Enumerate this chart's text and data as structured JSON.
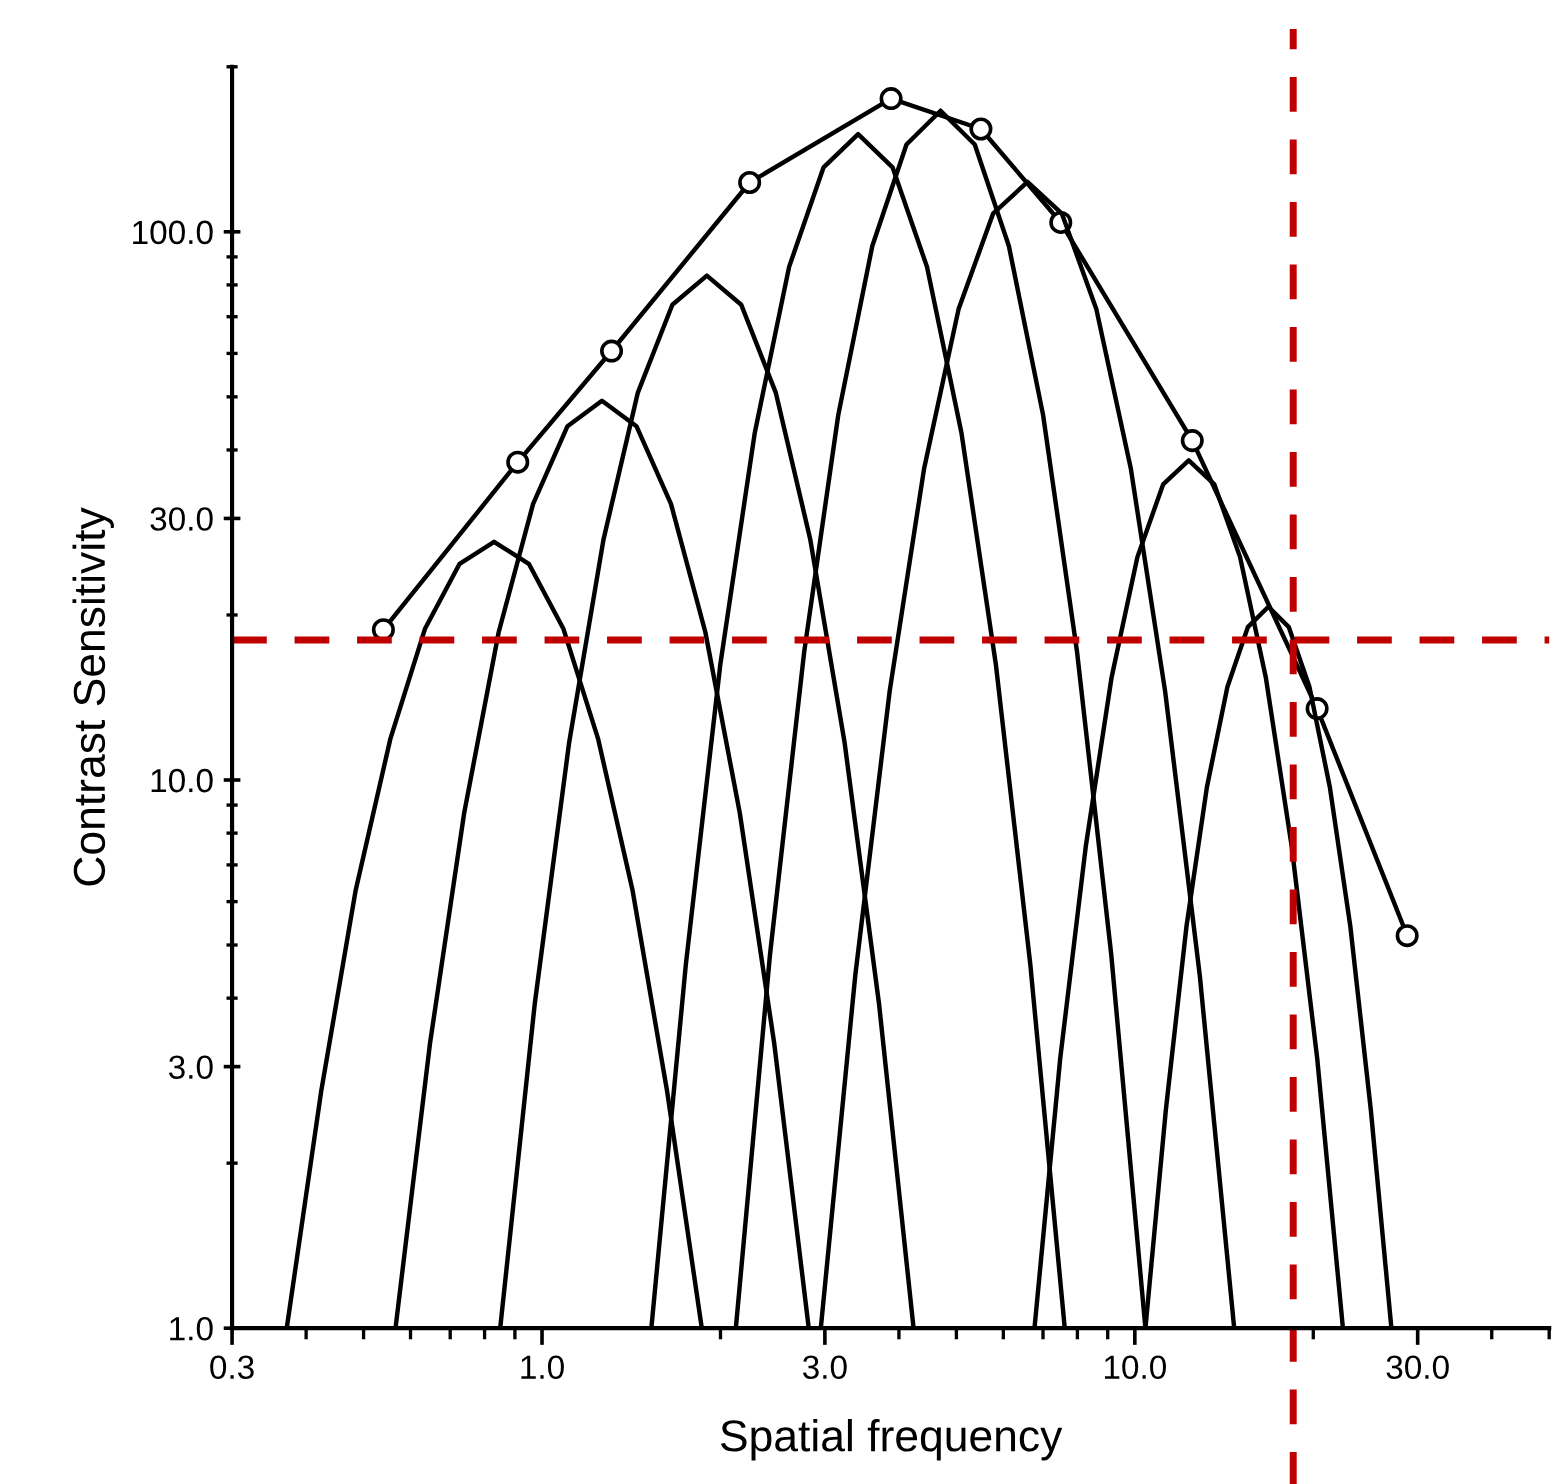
{
  "chart_data": {
    "type": "line",
    "xlabel": "Spatial frequency",
    "ylabel": "Contrast Sensitivity",
    "log": "xy",
    "grid": false,
    "legend": false,
    "line_style": "solid",
    "xlim": [
      0.3,
      50
    ],
    "ylim": [
      1,
      200
    ],
    "xticks": [
      0.3,
      {
        "value": 1,
        "label": "1.0"
      },
      {
        "value": 3,
        "label": "3.0"
      },
      {
        "value": 10,
        "label": "10.0"
      },
      {
        "value": 30,
        "label": "30.0"
      }
    ],
    "yticks": [
      {
        "value": 1,
        "label": "1.0"
      },
      {
        "value": 3,
        "label": "3.0"
      },
      {
        "value": 10,
        "label": "10.0"
      },
      {
        "value": 30,
        "label": "30.0"
      },
      {
        "value": 100,
        "label": "100.0"
      }
    ],
    "series": [
      {
        "color": "#000000",
        "marker": "circle",
        "x": [
          0.54,
          0.91,
          1.31,
          2.24,
          3.88,
          5.5,
          7.5,
          12.5,
          20.3,
          28.8
        ],
        "values": [
          18.8,
          38,
          60.6,
          123,
          175,
          154,
          104,
          41.6,
          13.5,
          5.2
        ]
      },
      {
        "color": "#000000",
        "marker": "none",
        "x": [
          0.371,
          0.424,
          0.485,
          0.555,
          0.635,
          0.726,
          0.83,
          0.95,
          1.086,
          1.243,
          1.421,
          1.626,
          1.86
        ],
        "values": [
          1,
          2.7,
          6.3,
          11.9,
          18.9,
          24.8,
          27.2,
          24.8,
          18.9,
          11.9,
          6.3,
          2.7,
          1
        ]
      },
      {
        "color": "#000000",
        "marker": "none",
        "x": [
          0.566,
          0.647,
          0.739,
          0.845,
          0.966,
          1.104,
          1.262,
          1.443,
          1.65,
          1.886,
          2.156,
          2.465,
          2.818
        ],
        "values": [
          1,
          3.3,
          8.7,
          18.6,
          31.9,
          44.2,
          49.2,
          44.2,
          31.9,
          18.6,
          8.7,
          3.3,
          1
        ]
      },
      {
        "color": "#000000",
        "marker": "none",
        "x": [
          0.85,
          0.972,
          1.111,
          1.27,
          1.451,
          1.659,
          1.897,
          2.168,
          2.479,
          2.834,
          3.239,
          3.703,
          4.234
        ],
        "values": [
          1,
          3.9,
          11.7,
          27.5,
          50.9,
          73.6,
          83.2,
          73.6,
          50.9,
          27.5,
          11.7,
          3.9,
          1
        ]
      },
      {
        "color": "#000000",
        "marker": "none",
        "x": [
          1.529,
          1.748,
          1.998,
          2.285,
          2.611,
          2.985,
          3.414,
          3.902,
          4.461,
          5.099,
          5.831,
          6.664,
          7.617
        ],
        "values": [
          1,
          4.6,
          16.2,
          43,
          86.3,
          131.1,
          150.7,
          131.1,
          86.3,
          43,
          16.2,
          4.6,
          1
        ]
      },
      {
        "color": "#000000",
        "marker": "none",
        "x": [
          2.123,
          2.424,
          2.768,
          3.16,
          3.607,
          4.119,
          4.703,
          5.37,
          6.131,
          7.003,
          7.991,
          9.125,
          10.42
        ],
        "values": [
          1,
          4.8,
          17.1,
          46.3,
          94.2,
          144.3,
          166.3,
          144.3,
          94.2,
          46.3,
          17.1,
          4.8,
          1
        ]
      },
      {
        "color": "#000000",
        "marker": "none",
        "x": [
          2.953,
          3.376,
          3.858,
          4.411,
          5.042,
          5.765,
          6.591,
          7.534,
          8.613,
          9.845,
          11.25,
          12.87,
          14.71
        ],
        "values": [
          1,
          4.4,
          14.5,
          37,
          72.2,
          107.9,
          123.3,
          107.9,
          72.2,
          37,
          14.5,
          4.4,
          1
        ]
      },
      {
        "color": "#000000",
        "marker": "none",
        "x": [
          6.772,
          7.483,
          8.27,
          9.138,
          10.1,
          11.16,
          12.33,
          13.62,
          15.05,
          16.63,
          18.38,
          20.31,
          22.44
        ],
        "values": [
          1,
          3.1,
          7.6,
          15.4,
          25.5,
          34.6,
          38.3,
          34.6,
          25.5,
          15.4,
          7.6,
          3.1,
          1
        ]
      },
      {
        "color": "#000000",
        "marker": "none",
        "x": [
          10.42,
          11.28,
          12.22,
          13.23,
          14.33,
          15.51,
          16.8,
          18.19,
          19.7,
          21.33,
          23.1,
          25.01,
          27.09
        ],
        "values": [
          1,
          2.5,
          5.4,
          9.7,
          14.8,
          19,
          20.7,
          19,
          14.8,
          9.7,
          5.4,
          2.5,
          1
        ]
      }
    ],
    "ref_lines": [
      {
        "axis": "y",
        "value": 18,
        "color": "#c00000",
        "line_style": "dashed"
      },
      {
        "axis": "x",
        "value": 18.5,
        "color": "#c00000",
        "line_style": "dashed"
      }
    ]
  }
}
